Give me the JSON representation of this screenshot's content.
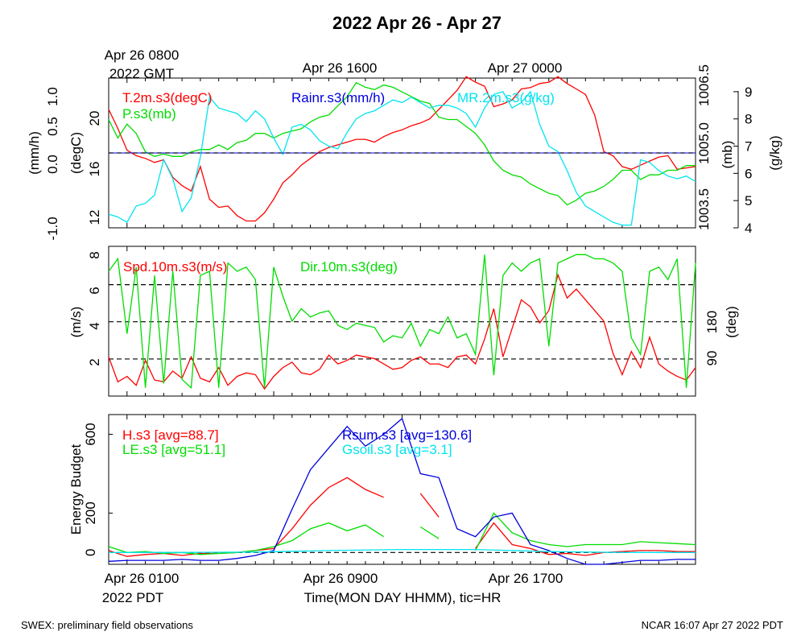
{
  "title": "2022 Apr 26 - Apr 27",
  "top_axis": {
    "gmt_label_line1": "Apr 26 0800",
    "gmt_label_line2": "2022 GMT",
    "tick_labels": [
      "Apr 26 1600",
      "Apr 27 0000"
    ]
  },
  "bottom_axis": {
    "tick_labels": [
      "Apr 26 0100",
      "Apr 26 0900",
      "Apr 26 1700"
    ],
    "pdt_label": "2022 PDT",
    "xlabel": "Time(MON DAY HHMM), tic=HR"
  },
  "footer": {
    "left": "SWEX: preliminary field observations",
    "right": "NCAR 16:07 Apr 27 2022 PDT"
  },
  "colors": {
    "red": "#ff0000",
    "green": "#00dd00",
    "blue": "#0000dd",
    "cyan": "#00e5ee",
    "black": "#000000"
  },
  "chart_data": [
    {
      "type": "line",
      "panel": "met",
      "x_unit": "hours since Apr 26 0000 PDT",
      "xlim": [
        0,
        32
      ],
      "axes": {
        "rain": {
          "label": "(mm/h)",
          "ticks": [
            "1.0",
            "0.5",
            "0.0",
            "-1.0"
          ],
          "ylim": [
            -1.0,
            1.0
          ]
        },
        "temp": {
          "label": "(degC)",
          "ticks": [
            "20",
            "16",
            "12"
          ],
          "ylim": [
            11.5,
            22.5
          ]
        },
        "pres": {
          "label": "(mb)",
          "ticks": [
            "1006.5",
            "1005.0",
            "1003.5"
          ],
          "ylim": [
            1003.25,
            1006.5
          ]
        },
        "mr": {
          "label": "(g/kg)",
          "ticks": [
            "9",
            "8",
            "7",
            "6",
            "5",
            "4"
          ],
          "ylim": [
            4,
            9.5
          ]
        }
      },
      "series": [
        {
          "name": "T.2m.s3(degC)",
          "axis": "temp",
          "color": "red",
          "x": [
            0,
            0.5,
            1,
            1.5,
            2,
            2.5,
            3,
            3.5,
            4,
            4.5,
            5,
            5.5,
            6,
            6.5,
            7,
            7.5,
            8,
            8.5,
            9,
            9.5,
            10,
            10.5,
            11,
            11.5,
            12,
            12.5,
            13,
            13.5,
            14,
            14.5,
            15,
            15.5,
            16,
            16.5,
            17,
            17.5,
            18,
            18.5,
            19,
            19.5,
            20,
            20.5,
            21,
            21.5,
            22,
            22.5,
            23,
            23.5,
            24,
            24.5,
            25,
            25.5,
            26,
            26.5,
            27,
            27.5,
            28,
            28.5,
            29,
            29.5,
            30,
            30.5,
            31,
            31.5,
            32
          ],
          "y": [
            20.2,
            18.8,
            17.2,
            16.8,
            16.6,
            16.3,
            16.5,
            15.2,
            14.6,
            14.2,
            16.0,
            13.6,
            13.0,
            13.1,
            12.4,
            12.0,
            12.0,
            12.6,
            13.6,
            14.8,
            15.4,
            16.1,
            16.6,
            17.1,
            17.4,
            17.6,
            17.8,
            18.0,
            18.0,
            17.8,
            18.2,
            18.5,
            18.7,
            19.0,
            19.2,
            19.5,
            20.2,
            20.9,
            21.6,
            22.6,
            22.2,
            21.9,
            20.4,
            20.6,
            20.9,
            21.7,
            21.8,
            22.1,
            22.2,
            22.6,
            22.1,
            21.7,
            21.3,
            19.8,
            17.1,
            16.8,
            16.0,
            15.8,
            16.1,
            16.4,
            16.7,
            16.8,
            15.8,
            15.9,
            16.0
          ]
        },
        {
          "name": "P.s3(mb)",
          "axis": "pres",
          "color": "green",
          "x": [
            0,
            0.5,
            1,
            1.5,
            2,
            2.5,
            3,
            3.5,
            4,
            4.5,
            5,
            5.5,
            6,
            6.5,
            7,
            7.5,
            8,
            8.5,
            9,
            9.5,
            10,
            10.5,
            11,
            11.5,
            12,
            12.5,
            13,
            13.5,
            14,
            14.5,
            15,
            15.5,
            16,
            16.5,
            17,
            17.5,
            18,
            18.5,
            19,
            19.5,
            20,
            20.5,
            21,
            21.5,
            22,
            22.5,
            23,
            23.5,
            24,
            24.5,
            25,
            25.5,
            26,
            26.5,
            27,
            27.5,
            28,
            28.5,
            29,
            29.5,
            30,
            30.5,
            31,
            31.5,
            32
          ],
          "y": [
            1005.6,
            1005.2,
            1005.5,
            1005.3,
            1004.9,
            1004.8,
            1004.85,
            1004.8,
            1004.8,
            1004.9,
            1004.95,
            1004.95,
            1005.05,
            1004.95,
            1005.1,
            1005.15,
            1005.3,
            1005.3,
            1005.2,
            1005.3,
            1005.35,
            1005.4,
            1005.55,
            1005.65,
            1005.7,
            1005.9,
            1006.1,
            1006.4,
            1006.3,
            1006.25,
            1006.35,
            1006.3,
            1006.2,
            1006.1,
            1006.0,
            1005.95,
            1005.65,
            1005.6,
            1005.6,
            1005.45,
            1005.3,
            1005.05,
            1004.7,
            1004.5,
            1004.4,
            1004.35,
            1004.2,
            1004.1,
            1004.0,
            1003.95,
            1003.75,
            1003.85,
            1004.0,
            1004.05,
            1004.15,
            1004.3,
            1004.5,
            1004.5,
            1004.3,
            1004.4,
            1004.4,
            1004.5,
            1004.5,
            1004.6,
            1004.6
          ]
        },
        {
          "name": "MR.2m.s3(g/kg)",
          "axis": "mr",
          "color": "cyan",
          "x": [
            0,
            0.5,
            1,
            1.5,
            2,
            2.5,
            3,
            3.5,
            4,
            4.5,
            5,
            5.5,
            6,
            6.5,
            7,
            7.5,
            8,
            8.5,
            9,
            9.5,
            10,
            10.5,
            11,
            11.5,
            12,
            12.5,
            13,
            13.5,
            14,
            14.5,
            15,
            15.5,
            16,
            16.5,
            17,
            17.5,
            18,
            18.5,
            19,
            19.5,
            20,
            20.5,
            21,
            21.5,
            22,
            22.5,
            23,
            23.5,
            24,
            24.5,
            25,
            25.5,
            26,
            26.5,
            27,
            27.5,
            28,
            28.5,
            29,
            29.5,
            30,
            30.5,
            31,
            31.5,
            32
          ],
          "y": [
            4.5,
            4.4,
            4.2,
            4.8,
            4.9,
            5.2,
            6.5,
            5.8,
            4.6,
            5.1,
            6.6,
            8.8,
            8.4,
            8.3,
            8.2,
            7.9,
            8.3,
            8.0,
            7.3,
            6.7,
            7.7,
            7.8,
            7.6,
            7.2,
            7.0,
            6.9,
            7.5,
            8.0,
            8.2,
            8.3,
            8.5,
            8.7,
            8.6,
            8.8,
            8.6,
            8.4,
            8.5,
            8.5,
            8.4,
            8.2,
            7.7,
            8.4,
            8.9,
            9.0,
            8.4,
            8.6,
            9.0,
            7.8,
            7.0,
            6.8,
            6.1,
            5.3,
            4.8,
            4.6,
            4.4,
            4.2,
            4.1,
            4.1,
            6.5,
            6.4,
            6.1,
            5.9,
            5.8,
            5.9,
            5.7
          ]
        },
        {
          "name": "Rainr.s3(mm/h)",
          "axis": "rain",
          "color": "blue",
          "x": [
            0,
            32
          ],
          "y": [
            0.0,
            0.0
          ]
        }
      ]
    },
    {
      "type": "line",
      "panel": "wind",
      "x_unit": "hours since Apr 26 0000 PDT",
      "xlim": [
        0,
        32
      ],
      "axes": {
        "spd": {
          "label": "(m/s)",
          "ticks": [
            "8",
            "6",
            "4",
            "2"
          ],
          "ylim": [
            0,
            8.4
          ]
        },
        "dir": {
          "label": "(deg)",
          "ticks": [
            "180",
            "90"
          ],
          "ylim": [
            0,
            360
          ]
        }
      },
      "reference_lines": {
        "axis": "spd",
        "values": [
          2.08,
          4.17,
          6.25
        ]
      },
      "series": [
        {
          "name": "Spd.10m.s3(m/s)",
          "axis": "spd",
          "color": "red",
          "x": [
            0,
            0.5,
            1,
            1.5,
            2,
            2.5,
            3,
            3.5,
            4,
            4.5,
            5,
            5.5,
            6,
            6.5,
            7,
            7.5,
            8,
            8.5,
            9,
            9.5,
            10,
            10.5,
            11,
            11.5,
            12,
            12.5,
            13,
            13.5,
            14,
            14.5,
            15,
            15.5,
            16,
            16.5,
            17,
            17.5,
            18,
            18.5,
            19,
            19.5,
            20,
            20.5,
            21,
            21.5,
            22,
            22.5,
            23,
            23.5,
            24,
            24.5,
            25,
            25.5,
            26,
            26.5,
            27,
            27.5,
            28,
            28.5,
            29,
            29.5,
            30,
            30.5,
            31,
            31.5,
            32
          ],
          "y": [
            2.2,
            0.8,
            1.1,
            0.6,
            2.0,
            0.9,
            0.8,
            1.4,
            1.0,
            2.2,
            1.0,
            0.8,
            1.6,
            0.6,
            1.1,
            1.3,
            1.2,
            0.4,
            1.1,
            1.6,
            1.9,
            1.3,
            1.2,
            1.5,
            2.3,
            1.8,
            2.0,
            2.3,
            2.2,
            2.1,
            1.8,
            1.5,
            1.6,
            2.0,
            2.2,
            1.8,
            1.8,
            1.6,
            2.2,
            2.3,
            1.8,
            3.2,
            4.9,
            2.2,
            3.8,
            5.4,
            5.0,
            4.1,
            4.8,
            6.8,
            5.5,
            6.0,
            5.4,
            4.8,
            4.2,
            2.4,
            1.2,
            2.5,
            1.6,
            3.3,
            1.8,
            1.4,
            1.1,
            0.9,
            1.6
          ]
        },
        {
          "name": "Dir.10m.s3(deg)",
          "axis": "dir",
          "color": "green",
          "x": [
            0,
            0.5,
            1,
            1.5,
            2,
            2.5,
            3,
            3.5,
            4,
            4.5,
            5,
            5.5,
            6,
            6.5,
            7,
            7.5,
            8,
            8.5,
            9,
            9.5,
            10,
            10.5,
            11,
            11.5,
            12,
            12.5,
            13,
            13.5,
            14,
            14.5,
            15,
            15.5,
            16,
            16.5,
            17,
            17.5,
            18,
            18.5,
            19,
            19.5,
            20,
            20.5,
            21,
            21.5,
            22,
            22.5,
            23,
            23.5,
            24,
            24.5,
            25,
            25.5,
            26,
            26.5,
            27,
            27.5,
            28,
            28.5,
            29,
            29.5,
            30,
            30.5,
            31,
            31.5,
            32
          ],
          "y": [
            300,
            330,
            150,
            310,
            20,
            290,
            30,
            300,
            40,
            20,
            290,
            300,
            20,
            320,
            300,
            310,
            280,
            20,
            310,
            240,
            180,
            210,
            190,
            200,
            205,
            170,
            160,
            175,
            170,
            165,
            130,
            145,
            140,
            175,
            120,
            160,
            150,
            190,
            140,
            150,
            100,
            340,
            50,
            290,
            320,
            300,
            320,
            330,
            120,
            320,
            330,
            340,
            340,
            330,
            330,
            320,
            300,
            140,
            100,
            300,
            310,
            280,
            330,
            20,
            320
          ]
        }
      ]
    },
    {
      "type": "line",
      "panel": "energy",
      "x_unit": "hours since Apr 26 0000 PDT",
      "xlim": [
        0,
        32
      ],
      "ylabel": "Energy Budget",
      "ylim": [
        -60,
        700
      ],
      "yticks": [
        0,
        200,
        600
      ],
      "reference_lines": {
        "values": [
          0
        ]
      },
      "series": [
        {
          "name": "H.s3 [avg=88.7]",
          "color": "red",
          "x": [
            0,
            1,
            2,
            3,
            4,
            5,
            6,
            7,
            8,
            9,
            10,
            11,
            12,
            13,
            14,
            15,
            16,
            17,
            18,
            19,
            20,
            21,
            22,
            23,
            24,
            25,
            26,
            27,
            28,
            29,
            30,
            31,
            32
          ],
          "y": [
            10,
            -20,
            -10,
            -5,
            -15,
            -5,
            -5,
            0,
            10,
            20,
            120,
            240,
            330,
            380,
            320,
            280,
            null,
            300,
            180,
            null,
            20,
            150,
            40,
            20,
            -10,
            -5,
            -15,
            0,
            5,
            10,
            10,
            5,
            5
          ]
        },
        {
          "name": "LE.s3 [avg=51.1]",
          "color": "green",
          "x": [
            0,
            1,
            2,
            3,
            4,
            5,
            6,
            7,
            8,
            9,
            10,
            11,
            12,
            13,
            14,
            15,
            16,
            17,
            18,
            19,
            20,
            21,
            22,
            23,
            24,
            25,
            26,
            27,
            28,
            29,
            30,
            31,
            32
          ],
          "y": [
            30,
            0,
            5,
            -5,
            0,
            -10,
            -5,
            0,
            10,
            30,
            60,
            120,
            150,
            110,
            140,
            80,
            null,
            130,
            70,
            null,
            10,
            200,
            100,
            60,
            40,
            30,
            40,
            40,
            40,
            55,
            50,
            45,
            40
          ]
        },
        {
          "name": "Rsum.s3 [avg=130.6]",
          "color": "blue",
          "x": [
            0,
            1,
            2,
            3,
            4,
            5,
            6,
            7,
            8,
            9,
            10,
            11,
            12,
            13,
            14,
            15,
            16,
            17,
            18,
            19,
            20,
            21,
            22,
            23,
            24,
            25,
            26,
            27,
            28,
            29,
            30,
            31,
            32
          ],
          "y": [
            -45,
            -40,
            -40,
            -40,
            -35,
            -40,
            -40,
            -30,
            -15,
            10,
            220,
            420,
            530,
            640,
            540,
            600,
            680,
            400,
            380,
            120,
            80,
            180,
            200,
            40,
            10,
            -30,
            -60,
            -60,
            -50,
            -40,
            -40,
            -35,
            -35
          ]
        },
        {
          "name": "Gsoil.s3 [avg=3.1]",
          "color": "cyan",
          "x": [
            0,
            4,
            8,
            12,
            16,
            20,
            24,
            28,
            32
          ],
          "y": [
            0,
            0,
            2,
            10,
            15,
            15,
            5,
            0,
            0
          ]
        }
      ]
    }
  ]
}
